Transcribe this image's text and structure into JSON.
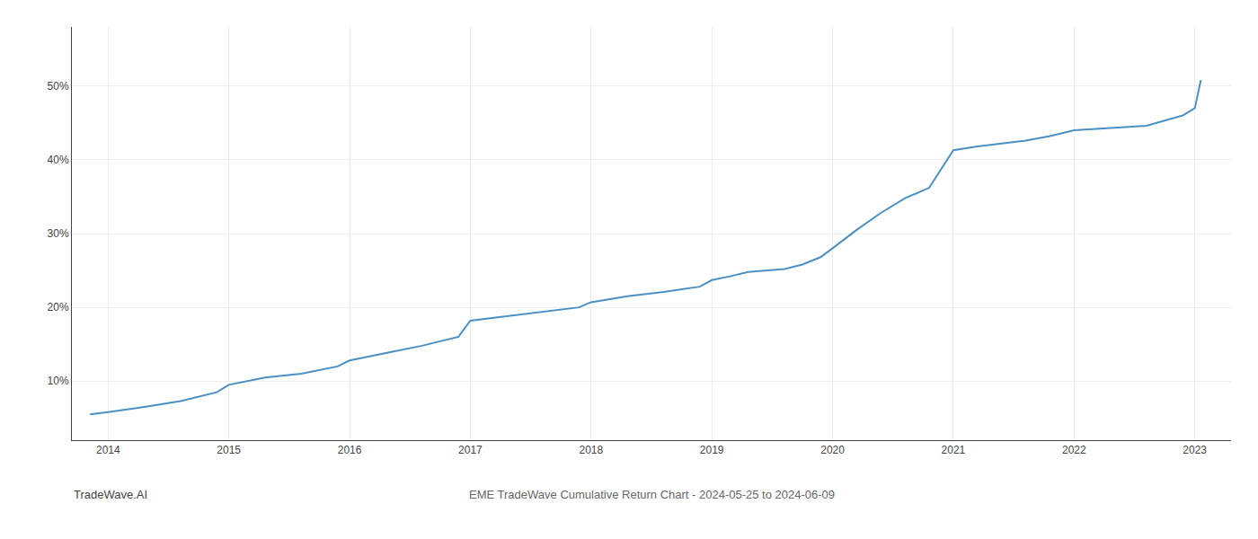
{
  "chart_data": {
    "type": "line",
    "title": "EME TradeWave Cumulative Return Chart - 2024-05-25 to 2024-06-09",
    "annotations": [
      "TradeWave.AI"
    ],
    "x": [
      2013.85,
      2014.0,
      2014.3,
      2014.6,
      2014.9,
      2015.0,
      2015.3,
      2015.6,
      2015.9,
      2016.0,
      2016.3,
      2016.6,
      2016.9,
      2017.0,
      2017.3,
      2017.6,
      2017.9,
      2018.0,
      2018.3,
      2018.6,
      2018.9,
      2019.0,
      2019.15,
      2019.3,
      2019.45,
      2019.6,
      2019.75,
      2019.9,
      2020.0,
      2020.2,
      2020.4,
      2020.6,
      2020.8,
      2021.0,
      2021.2,
      2021.4,
      2021.6,
      2021.8,
      2022.0,
      2022.3,
      2022.6,
      2022.9,
      2023.0,
      2023.05
    ],
    "values": [
      0.055,
      0.058,
      0.065,
      0.073,
      0.085,
      0.095,
      0.105,
      0.11,
      0.12,
      0.128,
      0.138,
      0.148,
      0.16,
      0.182,
      0.188,
      0.194,
      0.2,
      0.207,
      0.215,
      0.221,
      0.228,
      0.237,
      0.242,
      0.248,
      0.25,
      0.252,
      0.258,
      0.268,
      0.28,
      0.305,
      0.328,
      0.348,
      0.362,
      0.413,
      0.418,
      0.422,
      0.426,
      0.432,
      0.44,
      0.443,
      0.446,
      0.46,
      0.47,
      0.508
    ],
    "color": "#4a90c4",
    "xlim": [
      2013.7,
      2023.3
    ],
    "ylim": [
      0.02,
      0.58
    ],
    "xticks": [
      2014,
      2015,
      2016,
      2017,
      2018,
      2019,
      2020,
      2021,
      2022,
      2023
    ],
    "yticks": [
      {
        "value": 0.1,
        "label": "10%"
      },
      {
        "value": 0.2,
        "label": "20%"
      },
      {
        "value": 0.3,
        "label": "30%"
      },
      {
        "value": 0.4,
        "label": "40%"
      },
      {
        "value": 0.5,
        "label": "50%"
      }
    ],
    "grid": true
  }
}
